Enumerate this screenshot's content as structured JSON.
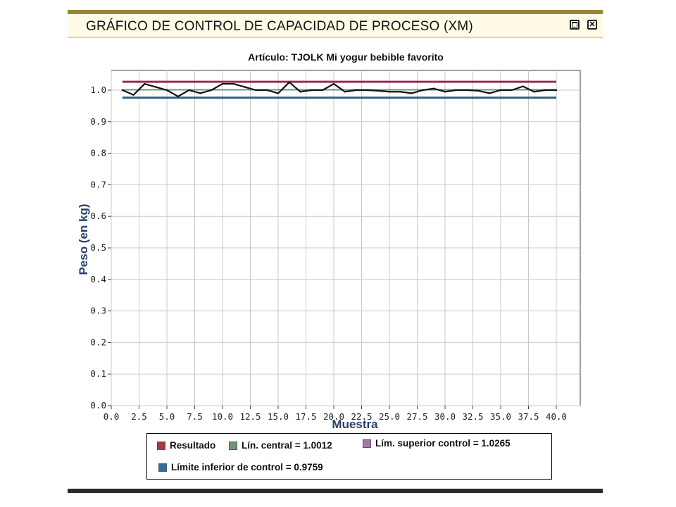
{
  "window": {
    "title": "GRÁFICO DE CONTROL DE CAPACIDAD DE PROCESO (XM)",
    "restore_icon": "restore-icon",
    "close_icon": "close-icon",
    "close_glyph": "✕"
  },
  "chart_data": {
    "type": "line",
    "title": "Artículo:  TJOLK Mi yogur bebible favorito",
    "xlabel": "Muestra",
    "ylabel": "Peso (en kg)",
    "xlim": [
      0,
      40
    ],
    "ylim": [
      0,
      1.0
    ],
    "x_ticks": [
      "0.0",
      "2.5",
      "5.0",
      "7.5",
      "10.0",
      "12.5",
      "15.0",
      "17.5",
      "20.0",
      "22.5",
      "25.0",
      "27.5",
      "30.0",
      "32.5",
      "35.0",
      "37.5",
      "40.0"
    ],
    "y_ticks": [
      "0.0",
      "0.1",
      "0.2",
      "0.3",
      "0.4",
      "0.5",
      "0.6",
      "0.7",
      "0.8",
      "0.9",
      "1.0"
    ],
    "grid": true,
    "series": [
      {
        "name": "Resultado",
        "color": "#111111",
        "x": [
          1,
          2,
          3,
          4,
          5,
          6,
          7,
          8,
          9,
          10,
          11,
          12,
          13,
          14,
          15,
          16,
          17,
          18,
          19,
          20,
          21,
          22,
          23,
          24,
          25,
          26,
          27,
          28,
          29,
          30,
          31,
          32,
          33,
          34,
          35,
          36,
          37,
          38,
          39,
          40
        ],
        "values": [
          1.0,
          0.985,
          1.02,
          1.01,
          1.0,
          0.98,
          1.0,
          0.99,
          1.0,
          1.02,
          1.02,
          1.01,
          1.0,
          1.0,
          0.99,
          1.025,
          0.995,
          1.0,
          1.0,
          1.02,
          0.995,
          1.0,
          1.0,
          0.998,
          0.995,
          0.995,
          0.99,
          1.0,
          1.005,
          0.995,
          1.0,
          1.0,
          0.998,
          0.99,
          1.0,
          1.0,
          1.012,
          0.995,
          1.0,
          1.0
        ]
      }
    ],
    "control_lines": [
      {
        "label": "Lín. central = 1.0012",
        "value": 1.0012,
        "color": "#6f9a6f"
      },
      {
        "label": "Lím. superior control = 1.0265",
        "value": 1.0265,
        "color": "#9a2b52"
      },
      {
        "label": "Límite inferior de control = 0.9759",
        "value": 0.9759,
        "color": "#2f5f7f"
      }
    ],
    "legend": [
      {
        "label": "Resultado",
        "color": "#a8384a"
      },
      {
        "label": "Lín. central = 1.0012",
        "color": "#6f9a6f"
      },
      {
        "label": "Lím. superior control = 1.0265",
        "color": "#a27aa6"
      },
      {
        "label": "Límite inferior de control = 0.9759",
        "color": "#2f6f9a"
      }
    ],
    "legend_position": "bottom"
  }
}
